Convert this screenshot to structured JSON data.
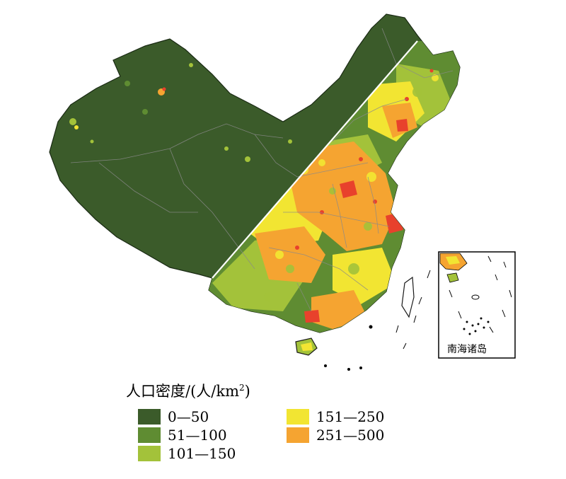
{
  "inset": {
    "label": "南海诸岛"
  },
  "legend": {
    "title_prefix": "人口密度/(人/km",
    "title_sup": "2",
    "title_suffix": ")",
    "items": [
      {
        "label": "0—50",
        "color": "#3b5b2a"
      },
      {
        "label": "51—100",
        "color": "#5f8c32"
      },
      {
        "label": "101—150",
        "color": "#a3c23a"
      },
      {
        "label": "151—250",
        "color": "#f2e532"
      },
      {
        "label": "251—500",
        "color": "#f5a431"
      }
    ]
  },
  "colors": {
    "dark_green": "#3b5b2a",
    "medium_green": "#5f8c32",
    "light_green": "#a3c23a",
    "yellow": "#f2e532",
    "orange": "#f5a431",
    "red": "#e8412c",
    "divider_line": "#ffffff"
  }
}
